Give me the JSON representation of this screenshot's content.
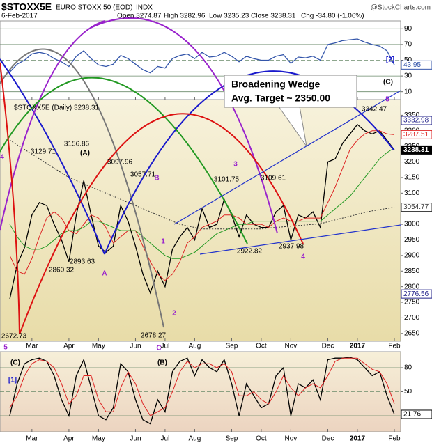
{
  "header": {
    "symbol": "$STOXX5E",
    "name": "EURO STOXX 50 (EOD)",
    "exchange": "INDX",
    "date": "6-Feb-2017",
    "quotes": [
      "Open 3274.87",
      "High 3282.96",
      "Low 3235.23",
      "Close 3238.31",
      "Chg -34.80 (-1.06%)"
    ],
    "source": "@StockCharts.com"
  },
  "annotations": {
    "box": [
      "Broadening Wedge",
      "Avg. Target ~ 2350.00"
    ],
    "price_points": [
      "3129.71",
      "3156.86",
      "3097.96",
      "3057.71",
      "3101.75",
      "3109.61",
      "3342.47",
      "2860.32",
      "2893.63",
      "2672.73",
      "2678.27",
      "2922.82",
      "2937.98"
    ],
    "waves": [
      "(A)",
      "A",
      "B",
      "1",
      "2",
      "3",
      "4",
      "5",
      "(C)",
      "C",
      "5",
      "4",
      "[2]",
      "(C)",
      "[1]",
      "(B)"
    ]
  },
  "chart_data": [
    {
      "type": "line",
      "ylim": [
        0,
        100
      ],
      "yticks": [
        10,
        30,
        50,
        70,
        90
      ],
      "grid": true,
      "series": [
        {
          "color": "#3355aa",
          "values": [
            35,
            45,
            50,
            58,
            60,
            58,
            52,
            48,
            42,
            55,
            62,
            52,
            44,
            42,
            45,
            56,
            52,
            45,
            38,
            34,
            42,
            40,
            52,
            56,
            58,
            52,
            60,
            54,
            55,
            60,
            55,
            48,
            55,
            52,
            50,
            50,
            55,
            57,
            46,
            54,
            53,
            55,
            50,
            70,
            72,
            75,
            76,
            77,
            73,
            70,
            68,
            62,
            43.95
          ]
        }
      ],
      "right_labels": [
        {
          "value": 43.95,
          "color": "#3355aa"
        }
      ]
    },
    {
      "type": "line",
      "title": "$STOXX5E (Daily) 3238.31",
      "ylim": [
        2625,
        3400
      ],
      "yticks": [
        2650,
        2700,
        2750,
        2800,
        2850,
        2900,
        2950,
        3000,
        3050,
        3100,
        3150,
        3200,
        3250,
        3300,
        3350
      ],
      "grid": false,
      "categories": [
        null,
        null,
        null,
        "Mar",
        null,
        null,
        null,
        null,
        "Apr",
        null,
        null,
        null,
        "May",
        null,
        null,
        null,
        null,
        "Jun",
        null,
        null,
        null,
        "Jul",
        null,
        null,
        null,
        "Aug",
        null,
        null,
        null,
        null,
        "Sep",
        null,
        null,
        null,
        "Oct",
        null,
        null,
        null,
        "Nov",
        null,
        null,
        null,
        null,
        "Dec",
        null,
        null,
        null,
        "2017",
        null,
        null,
        null,
        null,
        "Feb"
      ],
      "series": [
        {
          "color": "#000000",
          "values": [
            2760,
            2870,
            2925,
            3030,
            3070,
            3060,
            3000,
            2950,
            2880,
            3030,
            3140,
            3030,
            2930,
            2910,
            2930,
            3060,
            3010,
            2930,
            2840,
            2780,
            2850,
            2800,
            2920,
            2960,
            2990,
            2950,
            3050,
            2990,
            3000,
            3080,
            3030,
            2960,
            3030,
            3000,
            2990,
            2990,
            3040,
            3060,
            2950,
            3030,
            3020,
            3040,
            2990,
            3200,
            3210,
            3260,
            3290,
            3320,
            3300,
            3290,
            3300,
            3270,
            3238.31
          ]
        },
        {
          "color": "#dd2222",
          "values": [
            2900,
            2850,
            2840,
            2890,
            2960,
            3020,
            3040,
            3020,
            2980,
            2970,
            3000,
            3030,
            3020,
            2990,
            2940,
            2960,
            2980,
            2980,
            2930,
            2880,
            2840,
            2820,
            2840,
            2880,
            2940,
            2960,
            2990,
            3000,
            3010,
            3030,
            3030,
            3020,
            3000,
            3000,
            3000,
            2990,
            3010,
            3020,
            3010,
            3010,
            3020,
            3020,
            3020,
            3070,
            3120,
            3180,
            3240,
            3270,
            3290,
            3300,
            3300,
            3290,
            3287.51
          ]
        },
        {
          "color": "#229922",
          "values": [
            3000,
            2960,
            2930,
            2920,
            2920,
            2930,
            2950,
            2970,
            2980,
            2980,
            2990,
            3010,
            3010,
            3000,
            2990,
            2980,
            2980,
            2980,
            2960,
            2940,
            2920,
            2900,
            2890,
            2890,
            2900,
            2910,
            2930,
            2950,
            2970,
            2980,
            2990,
            3000,
            3000,
            3010,
            3010,
            3010,
            3010,
            3010,
            3010,
            3010,
            3010,
            3010,
            3010,
            3030,
            3050,
            3070,
            3090,
            3120,
            3150,
            3180,
            3210,
            3230,
            3245
          ]
        },
        {
          "color": "#333333",
          "dashed": true,
          "values": [
            3270,
            3255,
            3240,
            3225,
            3210,
            3195,
            3180,
            3165,
            3150,
            3140,
            3130,
            3120,
            3110,
            3100,
            3090,
            3080,
            3070,
            3060,
            3050,
            3040,
            3030,
            3020,
            3010,
            3000,
            2995,
            2990,
            2985,
            2985,
            2985,
            2985,
            2985,
            2985,
            2985,
            2985,
            2985,
            2988,
            2990,
            2992,
            2994,
            2996,
            2998,
            3000,
            3002,
            3008,
            3014,
            3020,
            3026,
            3032,
            3038,
            3043,
            3047,
            3051,
            3054.77
          ]
        }
      ],
      "right_labels": [
        {
          "value": 3332.98,
          "color": "#22228a"
        },
        {
          "value": 3287.51,
          "color": "#dd2222"
        },
        {
          "value": 3238.31,
          "color": "#000000"
        },
        {
          "value": 3054.77,
          "color": "#333333"
        },
        {
          "value": 2776.56,
          "color": "#22228a"
        }
      ]
    },
    {
      "type": "line",
      "ylim": [
        0,
        100
      ],
      "yticks": [
        20,
        50,
        80
      ],
      "grid": true,
      "series": [
        {
          "color": "#000000",
          "values": [
            20,
            60,
            85,
            90,
            92,
            88,
            70,
            40,
            20,
            70,
            90,
            55,
            20,
            15,
            30,
            85,
            75,
            40,
            15,
            10,
            40,
            25,
            75,
            88,
            92,
            70,
            90,
            80,
            75,
            90,
            60,
            20,
            60,
            45,
            30,
            35,
            70,
            80,
            20,
            60,
            55,
            65,
            40,
            90,
            92,
            92,
            93,
            90,
            80,
            70,
            75,
            45,
            21.76
          ]
        },
        {
          "color": "#dd2222",
          "values": [
            30,
            45,
            70,
            85,
            90,
            88,
            80,
            60,
            35,
            45,
            70,
            70,
            40,
            25,
            25,
            55,
            75,
            60,
            35,
            20,
            25,
            30,
            50,
            75,
            88,
            80,
            85,
            85,
            80,
            85,
            75,
            45,
            45,
            50,
            40,
            35,
            50,
            70,
            55,
            45,
            55,
            60,
            55,
            70,
            88,
            92,
            92,
            92,
            85,
            78,
            75,
            60,
            35
          ]
        }
      ],
      "right_labels": [
        {
          "value": 21.76,
          "color": "#000000"
        }
      ]
    }
  ]
}
